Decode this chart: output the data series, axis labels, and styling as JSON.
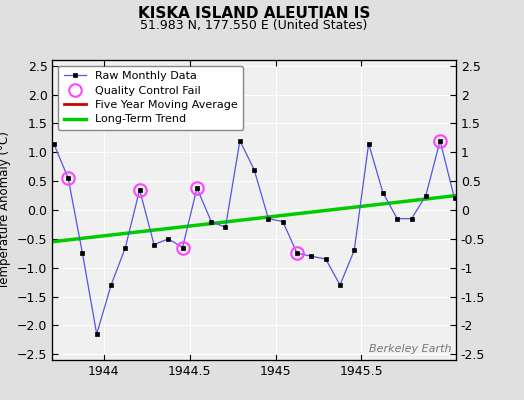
{
  "title": "KISKA ISLAND ALEUTIAN IS",
  "subtitle": "51.983 N, 177.550 E (United States)",
  "ylabel": "Temperature Anomaly (°C)",
  "watermark": "Berkeley Earth",
  "xlim": [
    1943.7,
    1946.05
  ],
  "ylim": [
    -2.6,
    2.6
  ],
  "yticks": [
    -2.5,
    -2.0,
    -1.5,
    -1.0,
    -0.5,
    0.0,
    0.5,
    1.0,
    1.5,
    2.0,
    2.5
  ],
  "xticks": [
    1944,
    1944.5,
    1945,
    1945.5
  ],
  "background_color": "#e0e0e0",
  "raw_x": [
    1943.708,
    1943.792,
    1943.875,
    1943.958,
    1944.042,
    1944.125,
    1944.208,
    1944.292,
    1944.375,
    1944.458,
    1944.542,
    1944.625,
    1944.708,
    1944.792,
    1944.875,
    1944.958,
    1945.042,
    1945.125,
    1945.208,
    1945.292,
    1945.375,
    1945.458,
    1945.542,
    1945.625,
    1945.708,
    1945.792,
    1945.875,
    1945.958,
    1946.042
  ],
  "raw_y": [
    1.15,
    0.55,
    -0.75,
    -2.15,
    -1.3,
    -0.65,
    0.35,
    -0.6,
    -0.5,
    -0.65,
    0.38,
    -0.2,
    -0.3,
    1.2,
    0.7,
    -0.15,
    -0.2,
    -0.75,
    -0.8,
    -0.85,
    -1.3,
    -0.7,
    1.15,
    0.3,
    -0.15,
    -0.15,
    0.25,
    1.2,
    0.2
  ],
  "qc_fail_indices": [
    1,
    6,
    9,
    10,
    17,
    27
  ],
  "trend_x": [
    1943.7,
    1946.05
  ],
  "trend_y": [
    -0.55,
    0.25
  ],
  "line_color": "#5555dd",
  "dot_color": "#000000",
  "qc_color": "#ff44ff",
  "trend_color": "#00cc00",
  "moving_avg_color": "#cc0000"
}
